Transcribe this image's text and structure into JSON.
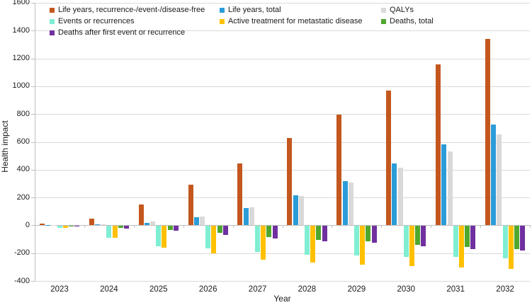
{
  "chart_data": {
    "type": "bar",
    "title": "",
    "xlabel": "Year",
    "ylabel": "Health impact",
    "categories": [
      "2023",
      "2024",
      "2025",
      "2026",
      "2027",
      "2028",
      "2029",
      "2030",
      "2031",
      "2032"
    ],
    "ylim": [
      -400,
      1600
    ],
    "ytick_step": 200,
    "grid": "horizontal",
    "legend_position": "inside-top-left, 3 columns",
    "colors": {
      "axis_line": "#bfbfbf",
      "gridline": "#d9d9d9",
      "text": "#1a1a1a",
      "background": "#ffffff"
    },
    "series": [
      {
        "name": "Life years, recurrence-/event-/disease-free",
        "color": "#c3571e",
        "values": [
          10,
          50,
          150,
          290,
          445,
          630,
          795,
          970,
          1155,
          1340
        ]
      },
      {
        "name": "Life years, total",
        "color": "#2b9cd8",
        "values": [
          2,
          5,
          20,
          60,
          125,
          215,
          320,
          445,
          582,
          726
        ]
      },
      {
        "name": "QALYs",
        "color": "#d9d9d9",
        "values": [
          2,
          8,
          30,
          65,
          130,
          210,
          310,
          415,
          530,
          652
        ]
      },
      {
        "name": "Events or recurrences",
        "color": "#7feed2",
        "values": [
          -15,
          -85,
          -145,
          -160,
          -185,
          -205,
          -212,
          -220,
          -224,
          -230
        ]
      },
      {
        "name": "Active treatment for metastatic disease",
        "color": "#ffc000",
        "values": [
          -15,
          -85,
          -155,
          -195,
          -240,
          -265,
          -280,
          -290,
          -298,
          -308
        ]
      },
      {
        "name": "Deaths, total",
        "color": "#4ea72e",
        "values": [
          -2,
          -12,
          -30,
          -50,
          -80,
          -100,
          -112,
          -135,
          -150,
          -168
        ]
      },
      {
        "name": "Deaths after first event or recurrence",
        "color": "#7030a0",
        "values": [
          -3,
          -18,
          -35,
          -62,
          -88,
          -110,
          -122,
          -145,
          -165,
          -178
        ]
      }
    ]
  }
}
